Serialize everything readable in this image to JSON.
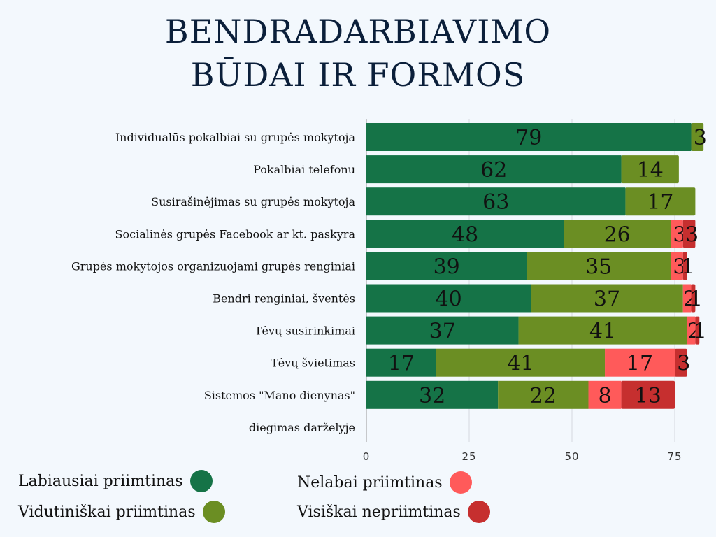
{
  "title": [
    "BENDRADARBIAVIMO",
    "BŪDAI IR FORMOS"
  ],
  "chart_data": {
    "type": "bar",
    "orientation": "horizontal",
    "stacked": true,
    "categories": [
      "Individualūs pokalbiai su grupės mokytoja",
      "Pokalbiai telefonu",
      "Susirašinėjimas su grupės mokytoja",
      "Socialinės grupės Facebook ar kt. paskyra",
      "Grupės mokytojos organizuojami grupės renginiai",
      "Bendri renginiai, šventės",
      "Tėvų susirinkimai",
      "Tėvų švietimas",
      "Sistemos \"Mano dienynas\"",
      "diegimas darželyje"
    ],
    "series": [
      {
        "name": "Labiausiai priimtinas",
        "color": "#157347",
        "values": [
          79,
          62,
          63,
          48,
          39,
          40,
          37,
          17,
          32,
          null
        ]
      },
      {
        "name": "Vidutiniškai priimtinas",
        "color": "#6b8e23",
        "values": [
          3,
          14,
          17,
          26,
          35,
          37,
          41,
          41,
          22,
          null
        ]
      },
      {
        "name": "Nelabai priimtinas",
        "color": "#ff5a5a",
        "values": [
          0,
          0,
          0,
          3,
          3,
          2,
          2,
          17,
          8,
          null
        ]
      },
      {
        "name": "Visiškai nepriimtinas",
        "color": "#c62f2f",
        "values": [
          0,
          0,
          0,
          3,
          1,
          1,
          1,
          3,
          13,
          null
        ]
      }
    ],
    "xticks": [
      0,
      25,
      50,
      75
    ],
    "xlim": [
      0,
      85
    ],
    "grid": true,
    "legend_position": "bottom"
  }
}
